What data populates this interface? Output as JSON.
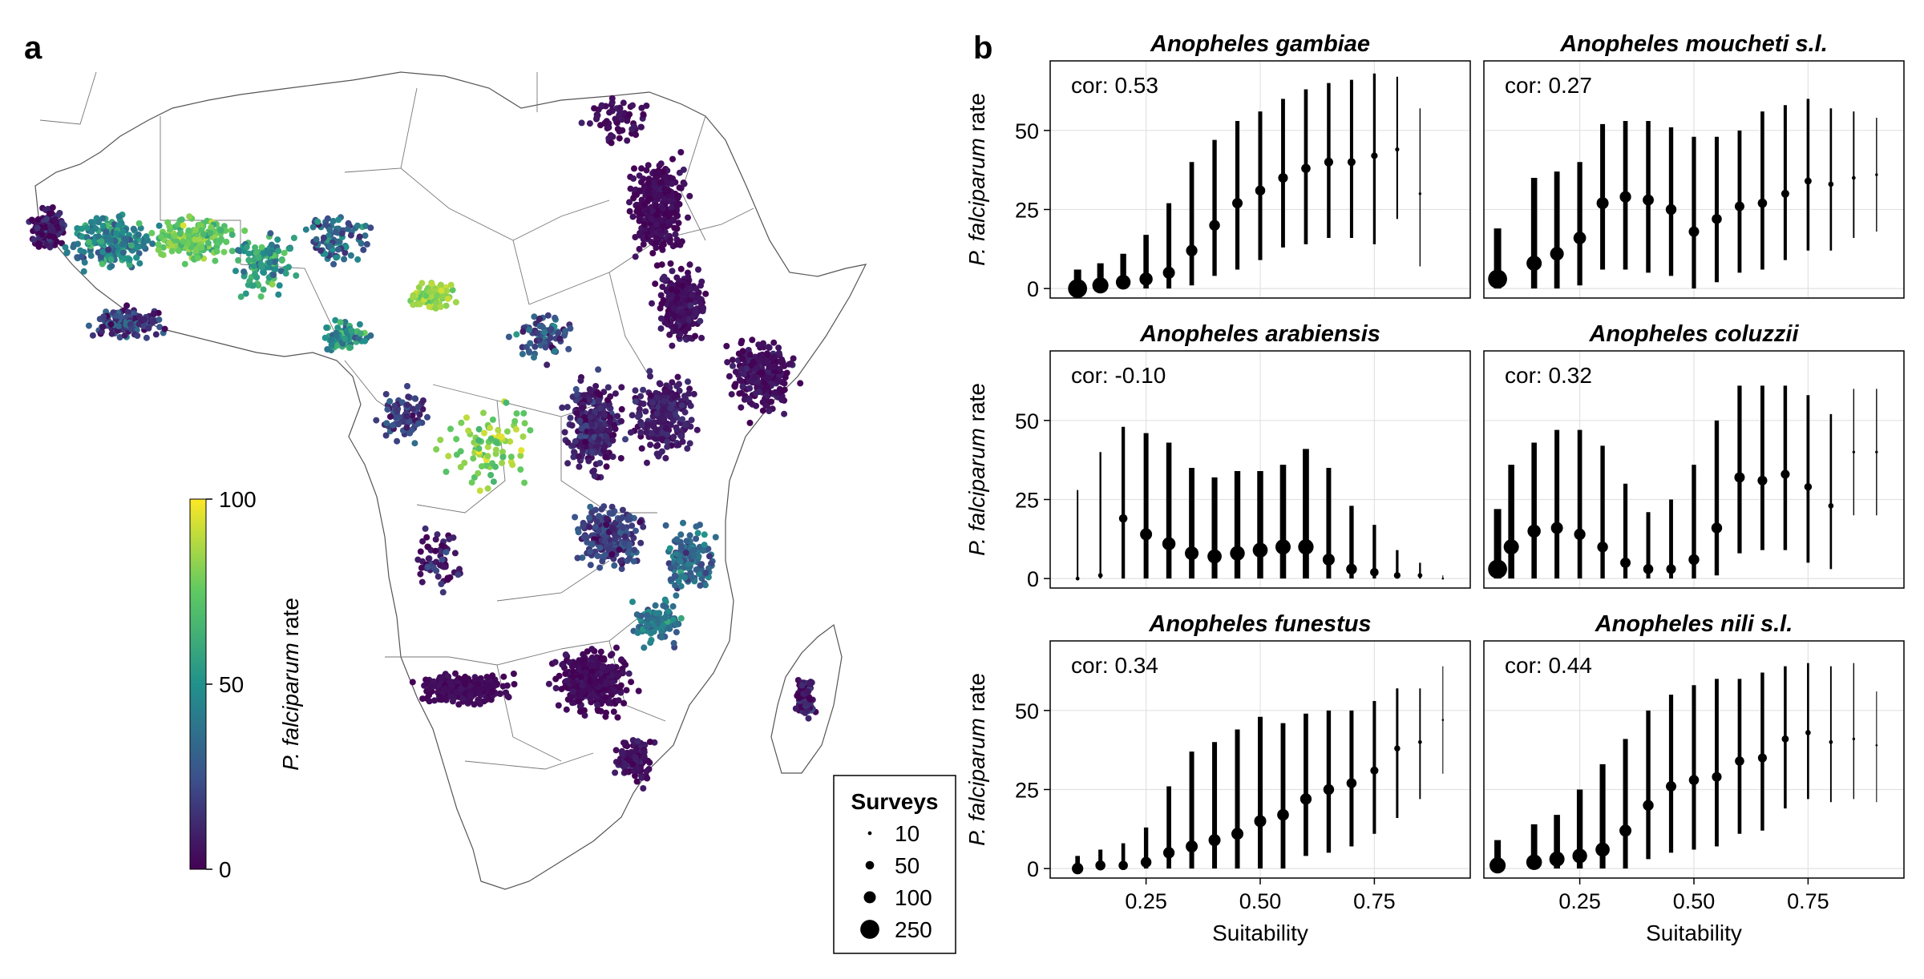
{
  "figure": {
    "panel_a_label": "a",
    "panel_b_label": "b"
  },
  "map": {
    "colorbar": {
      "label_italic": "P. falciparum",
      "label_rest": " rate",
      "ticks": [
        "0",
        "50",
        "100"
      ],
      "colormap": "viridis",
      "colors": [
        "#440154",
        "#3b528b",
        "#21918c",
        "#5ec962",
        "#fde725"
      ],
      "range": [
        0,
        100
      ]
    },
    "legend": {
      "title": "Surveys",
      "entries": [
        {
          "label": "10",
          "value": 10
        },
        {
          "label": "50",
          "value": 50
        },
        {
          "label": "100",
          "value": 100
        },
        {
          "label": "250",
          "value": 250
        }
      ]
    }
  },
  "chart_data": [
    {
      "type": "scatter",
      "title": "Anopheles gambiae",
      "annotation": "cor: 0.53",
      "xlabel": "",
      "ylabel_italic": "P. falciparum",
      "ylabel_rest": " rate",
      "xlim": [
        0.04,
        0.96
      ],
      "ylim": [
        -3,
        72
      ],
      "xticks": [
        "0.25",
        "0.50",
        "0.75"
      ],
      "yticks": [
        "0",
        "25",
        "50"
      ],
      "grid": true,
      "x": [
        0.1,
        0.15,
        0.2,
        0.25,
        0.3,
        0.35,
        0.4,
        0.45,
        0.5,
        0.55,
        0.6,
        0.65,
        0.7,
        0.75,
        0.8,
        0.85
      ],
      "y": [
        0,
        1,
        2,
        3,
        5,
        12,
        20,
        27,
        31,
        35,
        38,
        40,
        40,
        42,
        44,
        30
      ],
      "lo": [
        0,
        0,
        0,
        0,
        0,
        1,
        4,
        6,
        9,
        13,
        14,
        16,
        16,
        14,
        22,
        7
      ],
      "hi": [
        6,
        8,
        11,
        17,
        27,
        40,
        47,
        53,
        56,
        60,
        63,
        65,
        66,
        68,
        67,
        57
      ],
      "n": [
        250,
        180,
        150,
        120,
        100,
        90,
        80,
        75,
        70,
        65,
        60,
        55,
        45,
        30,
        12,
        5
      ]
    },
    {
      "type": "scatter",
      "title": "Anopheles moucheti s.l.",
      "annotation": "cor: 0.27",
      "xlabel": "",
      "xlim": [
        0.04,
        0.96
      ],
      "ylim": [
        -3,
        72
      ],
      "xticks": [
        "0.25",
        "0.50",
        "0.75"
      ],
      "yticks": [
        "0",
        "25",
        "50"
      ],
      "grid": true,
      "x": [
        0.07,
        0.15,
        0.2,
        0.25,
        0.3,
        0.35,
        0.4,
        0.45,
        0.5,
        0.55,
        0.6,
        0.65,
        0.7,
        0.75,
        0.8,
        0.85,
        0.9
      ],
      "y": [
        3,
        8,
        11,
        16,
        27,
        29,
        28,
        25,
        18,
        22,
        26,
        27,
        30,
        34,
        33,
        35,
        36
      ],
      "lo": [
        0,
        0,
        0,
        1,
        6,
        6,
        5,
        4,
        0,
        2,
        5,
        6,
        9,
        12,
        12,
        16,
        18
      ],
      "hi": [
        19,
        35,
        37,
        40,
        52,
        53,
        53,
        51,
        48,
        48,
        50,
        56,
        58,
        60,
        57,
        56,
        54
      ],
      "n": [
        250,
        160,
        130,
        110,
        100,
        90,
        85,
        80,
        75,
        70,
        65,
        60,
        45,
        35,
        20,
        10,
        5
      ]
    },
    {
      "type": "scatter",
      "title": "Anopheles arabiensis",
      "annotation": "cor: -0.10",
      "xlabel": "",
      "ylabel_italic": "P. falciparum",
      "ylabel_rest": " rate",
      "xlim": [
        0.04,
        0.96
      ],
      "ylim": [
        -3,
        72
      ],
      "xticks": [
        "0.25",
        "0.50",
        "0.75"
      ],
      "yticks": [
        "0",
        "25",
        "50"
      ],
      "grid": true,
      "x": [
        0.1,
        0.15,
        0.2,
        0.25,
        0.3,
        0.35,
        0.4,
        0.45,
        0.5,
        0.55,
        0.6,
        0.65,
        0.7,
        0.75,
        0.8,
        0.85,
        0.9
      ],
      "y": [
        0,
        1,
        19,
        14,
        11,
        8,
        7,
        8,
        9,
        10,
        10,
        6,
        3,
        2,
        1,
        1,
        0
      ],
      "lo": [
        0,
        0,
        0,
        0,
        0,
        0,
        0,
        0,
        0,
        0,
        0,
        0,
        0,
        0,
        0,
        0,
        0
      ],
      "hi": [
        28,
        40,
        48,
        46,
        43,
        35,
        32,
        34,
        34,
        36,
        41,
        35,
        23,
        17,
        9,
        5,
        1
      ],
      "n": [
        10,
        15,
        50,
        100,
        120,
        130,
        140,
        150,
        155,
        160,
        165,
        100,
        80,
        50,
        30,
        15,
        3
      ]
    },
    {
      "type": "scatter",
      "title": "Anopheles coluzzii",
      "annotation": "cor: 0.32",
      "xlabel": "",
      "xlim": [
        0.04,
        0.96
      ],
      "ylim": [
        -3,
        72
      ],
      "xticks": [
        "0.25",
        "0.50",
        "0.75"
      ],
      "yticks": [
        "0",
        "25",
        "50"
      ],
      "grid": true,
      "x": [
        0.07,
        0.1,
        0.15,
        0.2,
        0.25,
        0.3,
        0.35,
        0.4,
        0.45,
        0.5,
        0.55,
        0.6,
        0.65,
        0.7,
        0.75,
        0.8,
        0.85,
        0.9
      ],
      "y": [
        3,
        10,
        15,
        16,
        14,
        10,
        5,
        3,
        3,
        6,
        16,
        32,
        31,
        33,
        29,
        23,
        40,
        40
      ],
      "lo": [
        0,
        0,
        0,
        0,
        0,
        0,
        0,
        0,
        0,
        0,
        1,
        8,
        9,
        9,
        5,
        3,
        20,
        20
      ],
      "hi": [
        22,
        36,
        43,
        47,
        47,
        42,
        30,
        21,
        25,
        36,
        50,
        61,
        61,
        61,
        58,
        52,
        60,
        60
      ],
      "n": [
        250,
        160,
        120,
        100,
        90,
        80,
        75,
        70,
        65,
        80,
        80,
        75,
        65,
        55,
        40,
        20,
        5,
        5
      ]
    },
    {
      "type": "scatter",
      "title": "Anopheles funestus",
      "annotation": "cor: 0.34",
      "xlabel": "Suitability",
      "ylabel_italic": "P. falciparum",
      "ylabel_rest": " rate",
      "xlim": [
        0.04,
        0.96
      ],
      "ylim": [
        -3,
        72
      ],
      "xticks": [
        "0.25",
        "0.50",
        "0.75"
      ],
      "yticks": [
        "0",
        "25",
        "50"
      ],
      "grid": true,
      "x": [
        0.1,
        0.15,
        0.2,
        0.25,
        0.3,
        0.35,
        0.4,
        0.45,
        0.5,
        0.55,
        0.6,
        0.65,
        0.7,
        0.75,
        0.8,
        0.85,
        0.9
      ],
      "y": [
        0,
        1,
        1,
        2,
        5,
        7,
        9,
        11,
        15,
        17,
        22,
        25,
        27,
        31,
        38,
        40,
        47
      ],
      "lo": [
        0,
        0,
        0,
        0,
        0,
        0,
        0,
        0,
        0,
        0,
        4,
        5,
        7,
        11,
        16,
        22,
        30
      ],
      "hi": [
        4,
        6,
        8,
        13,
        26,
        37,
        40,
        44,
        48,
        46,
        49,
        50,
        50,
        53,
        57,
        57,
        64
      ],
      "n": [
        90,
        70,
        60,
        80,
        90,
        100,
        100,
        100,
        100,
        95,
        90,
        80,
        70,
        45,
        25,
        10,
        3
      ]
    },
    {
      "type": "scatter",
      "title": "Anopheles nili s.l.",
      "annotation": "cor: 0.44",
      "xlabel": "Suitability",
      "xlim": [
        0.04,
        0.96
      ],
      "ylim": [
        -3,
        72
      ],
      "xticks": [
        "0.25",
        "0.50",
        "0.75"
      ],
      "yticks": [
        "0",
        "25",
        "50"
      ],
      "grid": true,
      "x": [
        0.07,
        0.15,
        0.2,
        0.25,
        0.3,
        0.35,
        0.4,
        0.45,
        0.5,
        0.55,
        0.6,
        0.65,
        0.7,
        0.75,
        0.8,
        0.85,
        0.9
      ],
      "y": [
        1,
        2,
        3,
        4,
        6,
        12,
        20,
        26,
        28,
        29,
        34,
        35,
        41,
        43,
        40,
        41,
        39
      ],
      "lo": [
        0,
        0,
        0,
        0,
        0,
        0,
        3,
        5,
        6,
        7,
        11,
        12,
        19,
        22,
        21,
        22,
        21
      ],
      "hi": [
        9,
        14,
        17,
        25,
        33,
        41,
        50,
        55,
        58,
        60,
        60,
        62,
        64,
        65,
        64,
        65,
        56
      ],
      "n": [
        180,
        170,
        160,
        150,
        140,
        100,
        80,
        75,
        70,
        65,
        60,
        55,
        35,
        20,
        10,
        5,
        3
      ]
    }
  ]
}
